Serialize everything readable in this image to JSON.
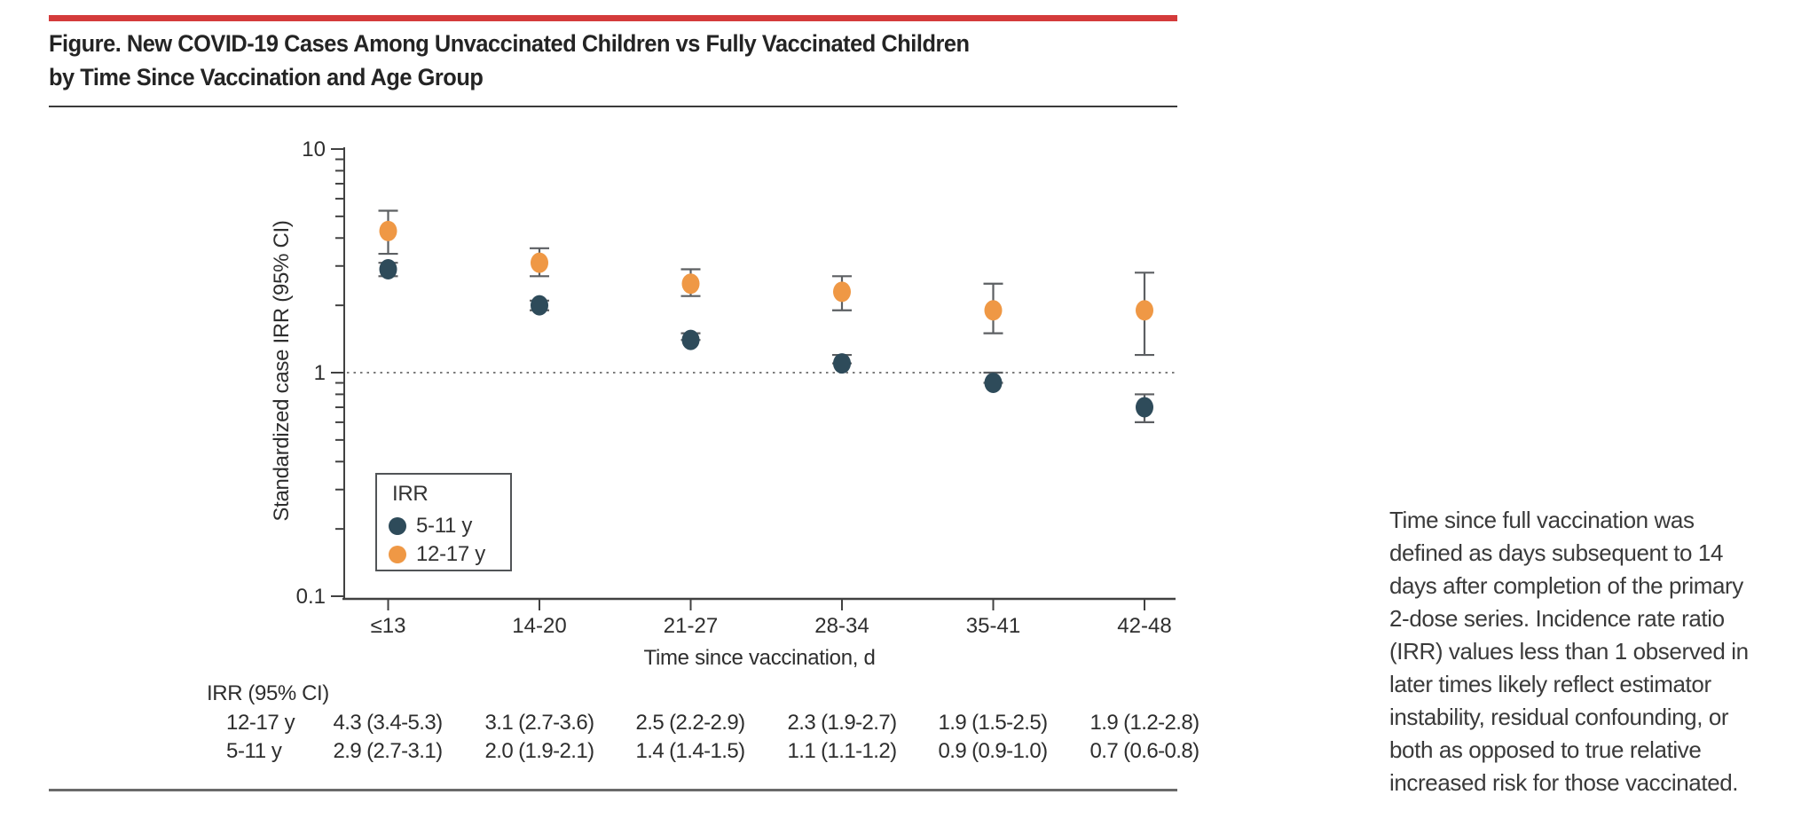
{
  "figure": {
    "title": "Figure. New COVID-19 Cases Among Unvaccinated Children vs Fully Vaccinated Children\nby Time Since Vaccination and Age Group"
  },
  "chart_data": {
    "type": "scatter",
    "title": "",
    "xlabel": "Time since vaccination, d",
    "ylabel": "Standardized case IRR (95% CI)",
    "y_scale": "log",
    "ylim": [
      0.1,
      10
    ],
    "y_ticks": [
      10,
      1,
      0.1
    ],
    "y_tick_labels": [
      "10",
      "1",
      "0.1"
    ],
    "reference_line": 1,
    "grid": false,
    "categories": [
      "≤13",
      "14-20",
      "21-27",
      "28-34",
      "35-41",
      "42-48"
    ],
    "series": [
      {
        "name": "5-11 y",
        "color": "#2e4b5a",
        "values": [
          2.9,
          2.0,
          1.4,
          1.1,
          0.9,
          0.7
        ],
        "ci_low": [
          2.7,
          1.9,
          1.4,
          1.1,
          0.9,
          0.6
        ],
        "ci_high": [
          3.1,
          2.1,
          1.5,
          1.2,
          1.0,
          0.8
        ]
      },
      {
        "name": "12-17 y",
        "color": "#ef9845",
        "values": [
          4.3,
          3.1,
          2.5,
          2.3,
          1.9,
          1.9
        ],
        "ci_low": [
          3.4,
          2.7,
          2.2,
          1.9,
          1.5,
          1.2
        ],
        "ci_high": [
          5.3,
          3.6,
          2.9,
          2.7,
          2.5,
          2.8
        ]
      }
    ],
    "legend": {
      "title": "IRR",
      "position": "inside-bottom-left"
    }
  },
  "table": {
    "header": "IRR (95% CI)",
    "rows": [
      {
        "label": "12-17 y",
        "values": [
          "4.3 (3.4-5.3)",
          "3.1 (2.7-3.6)",
          "2.5 (2.2-2.9)",
          "2.3 (1.9-2.7)",
          "1.9 (1.5-2.5)",
          "1.9 (1.2-2.8)"
        ]
      },
      {
        "label": "5-11 y",
        "values": [
          "2.9 (2.7-3.1)",
          "2.0 (1.9-2.1)",
          "1.4 (1.4-1.5)",
          "1.1 (1.1-1.2)",
          "0.9 (0.9-1.0)",
          "0.7 (0.6-0.8)"
        ]
      }
    ]
  },
  "caption": {
    "text": "Time since full vaccination was\ndefined as days subsequent to 14\ndays after completion of the primary\n2-dose series. Incidence rate ratio\n(IRR) values less than 1 observed in\nlater times likely reflect estimator\ninstability, residual confounding, or\nboth as opposed to true relative\nincreased risk for those vaccinated.",
    "colors": {
      "rule_red": "#d43b3b",
      "rule_dark": "#3b3b3b",
      "rule_bottom": "#6a6a6a"
    }
  }
}
